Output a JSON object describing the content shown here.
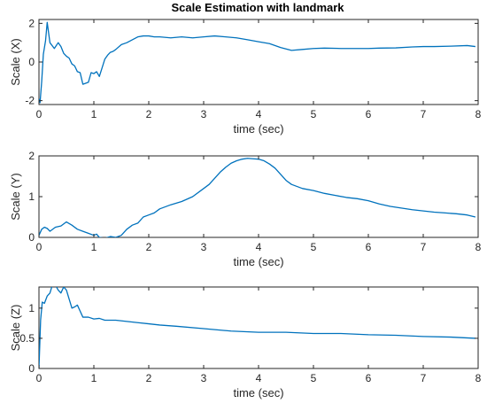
{
  "figure": {
    "title": "Scale Estimation with landmark"
  },
  "chart_data": [
    {
      "type": "line",
      "title": "Scale Estimation with landmark",
      "xlabel": "time (sec)",
      "ylabel": "Scale (X)",
      "xlim": [
        0,
        8
      ],
      "ylim": [
        -2.2,
        2.2
      ],
      "xticks": [
        0,
        1,
        2,
        3,
        4,
        5,
        6,
        7,
        8
      ],
      "yticks": [
        -2,
        0,
        2
      ],
      "color": "#0072BD",
      "series": [
        {
          "x": [
            0,
            0.02,
            0.05,
            0.08,
            0.12,
            0.15,
            0.2,
            0.28,
            0.35,
            0.4,
            0.45,
            0.5,
            0.55,
            0.6,
            0.65,
            0.7,
            0.75,
            0.8,
            0.85,
            0.9,
            0.95,
            1.0,
            1.05,
            1.1,
            1.15,
            1.2,
            1.25,
            1.3,
            1.35,
            1.4,
            1.5,
            1.6,
            1.7,
            1.8,
            1.9,
            2.0,
            2.1,
            2.2,
            2.4,
            2.6,
            2.8,
            3.0,
            3.2,
            3.4,
            3.6,
            3.8,
            4.0,
            4.2,
            4.4,
            4.6,
            4.8,
            5.0,
            5.2,
            5.5,
            5.8,
            6.0,
            6.2,
            6.5,
            6.8,
            7.0,
            7.2,
            7.5,
            7.8,
            7.95
          ],
          "y": [
            -1.9,
            -2.1,
            -1.0,
            0.4,
            1.1,
            2.05,
            1.0,
            0.7,
            1.0,
            0.8,
            0.45,
            0.3,
            0.2,
            -0.1,
            -0.2,
            -0.5,
            -0.55,
            -1.15,
            -1.1,
            -1.05,
            -0.55,
            -0.6,
            -0.5,
            -0.75,
            -0.3,
            0.15,
            0.35,
            0.5,
            0.55,
            0.65,
            0.9,
            1.0,
            1.15,
            1.3,
            1.35,
            1.35,
            1.3,
            1.3,
            1.25,
            1.3,
            1.25,
            1.3,
            1.35,
            1.3,
            1.25,
            1.15,
            1.05,
            0.95,
            0.75,
            0.6,
            0.65,
            0.7,
            0.72,
            0.7,
            0.7,
            0.7,
            0.72,
            0.73,
            0.78,
            0.8,
            0.8,
            0.82,
            0.85,
            0.8
          ]
        }
      ]
    },
    {
      "type": "line",
      "xlabel": "time (sec)",
      "ylabel": "Scale (Y)",
      "xlim": [
        0,
        8
      ],
      "ylim": [
        0,
        2
      ],
      "xticks": [
        0,
        1,
        2,
        3,
        4,
        5,
        6,
        7,
        8
      ],
      "yticks": [
        0,
        1,
        2
      ],
      "color": "#0072BD",
      "series": [
        {
          "x": [
            0,
            0.05,
            0.1,
            0.15,
            0.2,
            0.3,
            0.4,
            0.5,
            0.6,
            0.7,
            0.8,
            0.9,
            1.0,
            1.05,
            1.1,
            1.2,
            1.3,
            1.4,
            1.5,
            1.6,
            1.7,
            1.8,
            1.9,
            2.0,
            2.1,
            2.2,
            2.4,
            2.6,
            2.8,
            3.0,
            3.1,
            3.2,
            3.3,
            3.4,
            3.5,
            3.6,
            3.7,
            3.8,
            3.9,
            4.0,
            4.1,
            4.2,
            4.3,
            4.4,
            4.5,
            4.6,
            4.8,
            5.0,
            5.2,
            5.4,
            5.6,
            5.8,
            6.0,
            6.2,
            6.4,
            6.6,
            6.8,
            7.0,
            7.2,
            7.4,
            7.6,
            7.8,
            7.95
          ],
          "y": [
            0.05,
            0.2,
            0.25,
            0.22,
            0.15,
            0.25,
            0.28,
            0.38,
            0.3,
            0.2,
            0.15,
            0.1,
            0.05,
            0.08,
            0.0,
            -0.02,
            0.02,
            0.0,
            0.05,
            0.2,
            0.3,
            0.35,
            0.5,
            0.55,
            0.6,
            0.7,
            0.8,
            0.88,
            1.0,
            1.2,
            1.3,
            1.45,
            1.6,
            1.72,
            1.82,
            1.88,
            1.92,
            1.94,
            1.93,
            1.92,
            1.88,
            1.8,
            1.7,
            1.55,
            1.4,
            1.3,
            1.2,
            1.15,
            1.08,
            1.03,
            0.98,
            0.95,
            0.9,
            0.82,
            0.76,
            0.72,
            0.68,
            0.65,
            0.62,
            0.6,
            0.58,
            0.55,
            0.5
          ]
        }
      ]
    },
    {
      "type": "line",
      "xlabel": "time (sec)",
      "ylabel": "Scale (Z)",
      "xlim": [
        0,
        8
      ],
      "ylim": [
        0,
        1.35
      ],
      "xticks": [
        0,
        1,
        2,
        3,
        4,
        5,
        6,
        7,
        8
      ],
      "yticks": [
        0,
        0.5,
        1
      ],
      "color": "#0072BD",
      "series": [
        {
          "x": [
            0,
            0.03,
            0.06,
            0.1,
            0.15,
            0.2,
            0.25,
            0.3,
            0.35,
            0.4,
            0.45,
            0.5,
            0.55,
            0.6,
            0.65,
            0.7,
            0.75,
            0.8,
            0.9,
            1.0,
            1.1,
            1.2,
            1.4,
            1.6,
            1.8,
            2.0,
            2.2,
            2.5,
            3.0,
            3.5,
            4.0,
            4.5,
            5.0,
            5.5,
            6.0,
            6.5,
            7.0,
            7.5,
            7.95
          ],
          "y": [
            0.0,
            0.8,
            1.1,
            1.08,
            1.2,
            1.25,
            1.4,
            1.38,
            1.3,
            1.25,
            1.35,
            1.3,
            1.15,
            1.0,
            1.02,
            1.05,
            0.95,
            0.85,
            0.85,
            0.82,
            0.83,
            0.8,
            0.8,
            0.78,
            0.76,
            0.74,
            0.72,
            0.7,
            0.66,
            0.62,
            0.6,
            0.6,
            0.58,
            0.58,
            0.56,
            0.55,
            0.53,
            0.52,
            0.5
          ]
        }
      ]
    }
  ]
}
